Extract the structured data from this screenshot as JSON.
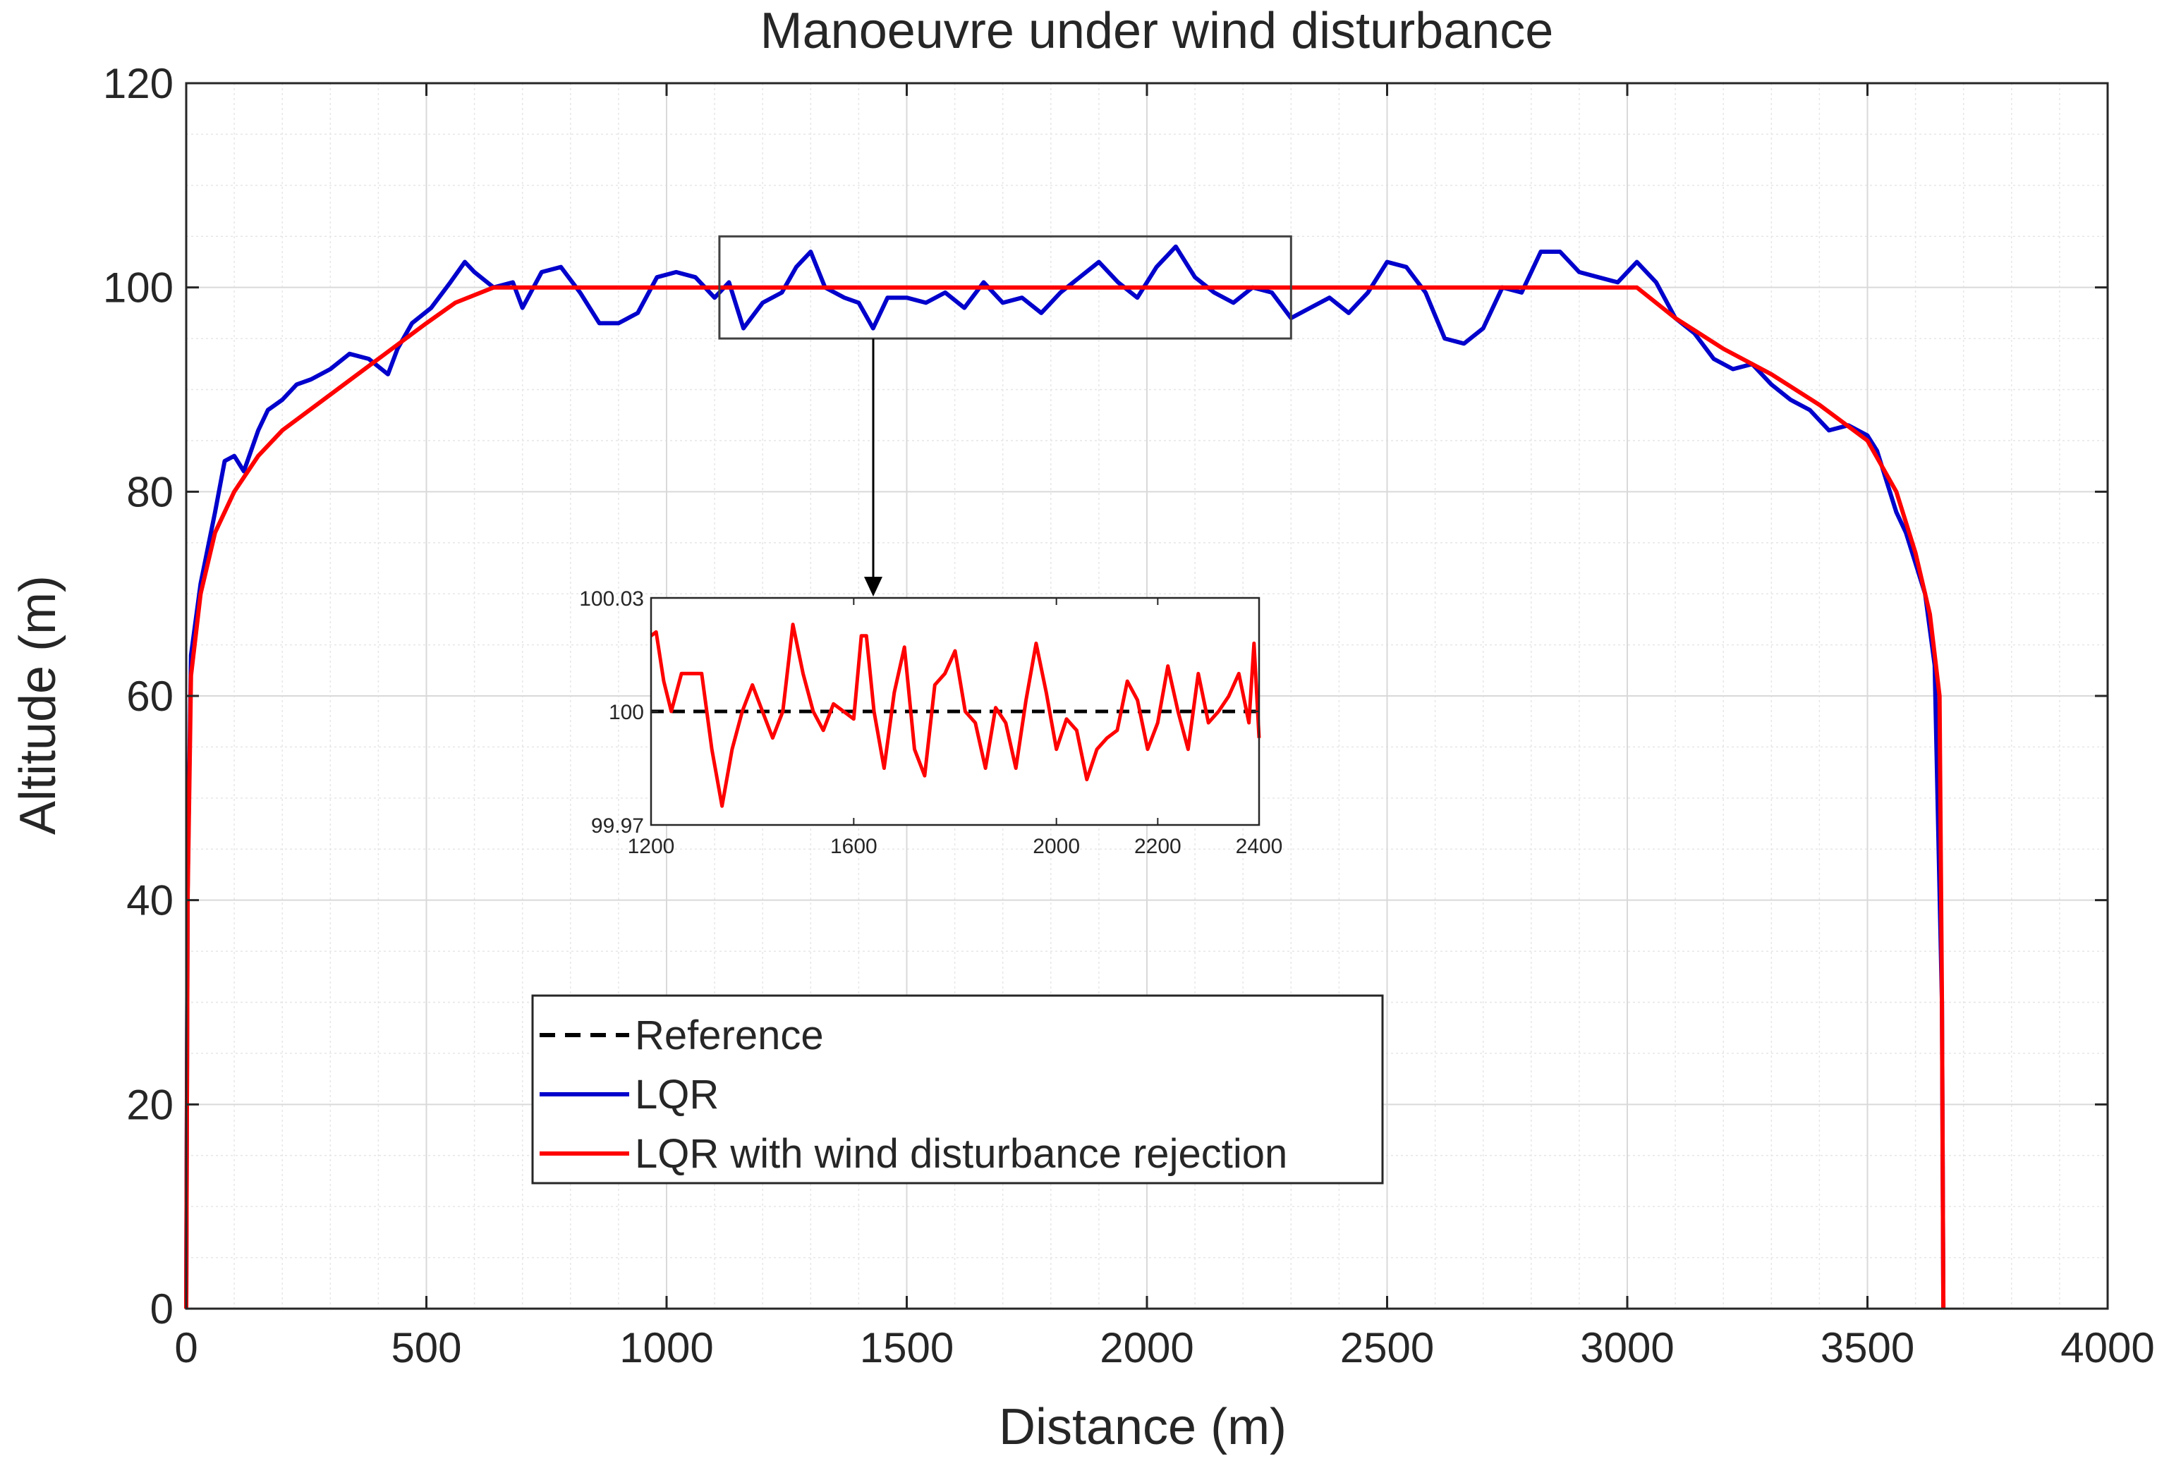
{
  "chart_data": [
    {
      "type": "line",
      "title": "Manoeuvre under wind disturbance",
      "xlabel": "Distance (m)",
      "ylabel": "Altitude (m)",
      "xlim": [
        0,
        4000
      ],
      "ylim": [
        0,
        120
      ],
      "xticks": [
        0,
        500,
        1000,
        1500,
        2000,
        2500,
        3000,
        3500,
        4000
      ],
      "yticks": [
        0,
        20,
        40,
        60,
        80,
        100,
        120
      ],
      "grid": true,
      "minor_grid": true,
      "legend_position": "lower-center",
      "series": [
        {
          "name": "Reference",
          "color": "#000000",
          "style": "dashed",
          "x": [
            0,
            3,
            10,
            30,
            60,
            100,
            150,
            200,
            300,
            400,
            500,
            560,
            640,
            1000,
            2000,
            2900,
            3020,
            3100,
            3200,
            3300,
            3400,
            3500,
            3560,
            3600,
            3630,
            3650,
            3655,
            3658
          ],
          "y": [
            0,
            40,
            62,
            70,
            76,
            80,
            83.5,
            86,
            89.5,
            93,
            96.5,
            98.5,
            100,
            100,
            100,
            100,
            100,
            97,
            94,
            91.5,
            88.5,
            85,
            80,
            74,
            68,
            60,
            30,
            0
          ]
        },
        {
          "name": "LQR",
          "color": "#0000CC",
          "style": "solid",
          "x": [
            0,
            3,
            10,
            30,
            60,
            80,
            100,
            120,
            150,
            170,
            200,
            230,
            260,
            300,
            340,
            380,
            420,
            440,
            470,
            510,
            550,
            580,
            600,
            640,
            680,
            700,
            740,
            780,
            820,
            860,
            900,
            940,
            980,
            1020,
            1060,
            1100,
            1130,
            1160,
            1200,
            1240,
            1270,
            1300,
            1330,
            1370,
            1400,
            1430,
            1460,
            1500,
            1540,
            1580,
            1620,
            1660,
            1700,
            1740,
            1780,
            1820,
            1860,
            1900,
            1940,
            1980,
            2020,
            2060,
            2100,
            2140,
            2180,
            2220,
            2260,
            2300,
            2340,
            2380,
            2420,
            2460,
            2500,
            2540,
            2580,
            2620,
            2660,
            2700,
            2740,
            2780,
            2820,
            2860,
            2900,
            2940,
            2980,
            3020,
            3060,
            3100,
            3140,
            3180,
            3220,
            3260,
            3300,
            3340,
            3380,
            3420,
            3460,
            3500,
            3520,
            3540,
            3560,
            3580,
            3600,
            3620,
            3640,
            3655,
            3658
          ],
          "y": [
            0,
            41,
            64,
            71,
            78,
            83,
            83.5,
            82,
            86,
            88,
            89,
            90.5,
            91,
            92,
            93.5,
            93,
            91.5,
            94,
            96.5,
            98,
            100.5,
            102.5,
            101.5,
            100,
            100.5,
            98,
            101.5,
            102,
            99.5,
            96.5,
            96.5,
            97.5,
            101,
            101.5,
            101,
            99,
            100.5,
            96,
            98.5,
            99.5,
            102,
            103.5,
            100,
            99,
            98.5,
            96,
            99,
            99,
            98.5,
            99.5,
            98,
            100.5,
            98.5,
            99,
            97.5,
            99.5,
            101,
            102.5,
            100.5,
            99,
            102,
            104,
            101,
            99.5,
            98.5,
            100,
            99.5,
            97,
            98,
            99,
            97.5,
            99.5,
            102.5,
            102,
            99.5,
            95,
            94.5,
            96,
            100,
            99.5,
            103.5,
            103.5,
            101.5,
            101,
            100.5,
            102.5,
            100.5,
            97,
            95.5,
            93,
            92,
            92.5,
            90.5,
            89,
            88,
            86,
            86.5,
            85.5,
            84,
            81,
            78,
            76,
            73,
            70,
            63,
            30,
            0
          ]
        },
        {
          "name": "LQR with wind disturbance rejection",
          "color": "#FF0000",
          "style": "solid",
          "x": [
            0,
            3,
            10,
            30,
            60,
            100,
            150,
            200,
            300,
            400,
            500,
            560,
            640,
            1000,
            2000,
            2900,
            3020,
            3100,
            3200,
            3300,
            3400,
            3500,
            3560,
            3600,
            3630,
            3650,
            3655,
            3658
          ],
          "y": [
            0,
            40,
            62,
            70,
            76,
            80,
            83.5,
            86,
            89.5,
            93,
            96.5,
            98.5,
            100,
            100,
            100,
            100,
            100,
            97,
            94,
            91.5,
            88.5,
            85,
            80,
            74,
            68,
            60,
            30,
            0
          ]
        }
      ]
    },
    {
      "type": "line",
      "xlim": [
        1200,
        2400
      ],
      "ylim": [
        99.97,
        100.03
      ],
      "xticks": [
        "1200",
        "1600",
        "2000",
        "2200",
        "2400"
      ],
      "yticks": [
        "99.97",
        "100",
        "100.03"
      ],
      "series": [
        {
          "name": "Reference",
          "color": "#000000",
          "style": "dashed",
          "x": [
            1200,
            2400
          ],
          "y": [
            100,
            100
          ]
        },
        {
          "name": "LQR with wind disturbance rejection",
          "color": "#FF0000",
          "style": "solid",
          "x": [
            1200,
            1210,
            1225,
            1240,
            1260,
            1280,
            1300,
            1320,
            1340,
            1360,
            1380,
            1400,
            1420,
            1440,
            1460,
            1480,
            1500,
            1520,
            1540,
            1560,
            1580,
            1600,
            1615,
            1625,
            1640,
            1660,
            1680,
            1700,
            1720,
            1740,
            1760,
            1780,
            1800,
            1820,
            1840,
            1860,
            1880,
            1900,
            1920,
            1940,
            1960,
            1980,
            2000,
            2020,
            2040,
            2060,
            2080,
            2100,
            2120,
            2140,
            2160,
            2180,
            2200,
            2220,
            2240,
            2260,
            2280,
            2300,
            2320,
            2340,
            2360,
            2380,
            2390,
            2400
          ],
          "y": [
            100.02,
            100.021,
            100.008,
            100.0,
            100.01,
            100.01,
            100.01,
            99.99,
            99.975,
            99.99,
            100.0,
            100.007,
            100.0,
            99.993,
            100.0,
            100.023,
            100.01,
            100.0,
            99.995,
            100.002,
            100.0,
            99.998,
            100.02,
            100.02,
            100.0,
            99.985,
            100.005,
            100.017,
            99.99,
            99.983,
            100.007,
            100.01,
            100.016,
            100.0,
            99.997,
            99.985,
            100.001,
            99.997,
            99.985,
            100.003,
            100.018,
            100.005,
            99.99,
            99.998,
            99.995,
            99.982,
            99.99,
            99.993,
            99.995,
            100.008,
            100.003,
            99.99,
            99.997,
            100.012,
            100.0,
            99.99,
            100.01,
            99.997,
            100.0,
            100.004,
            100.01,
            99.997,
            100.018,
            99.993
          ]
        }
      ]
    }
  ],
  "zoom_box": {
    "x": [
      1110,
      2300
    ],
    "y": [
      95,
      105
    ]
  }
}
